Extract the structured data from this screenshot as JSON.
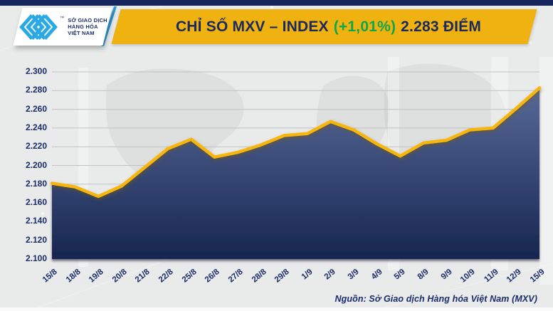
{
  "top_bar": {
    "color": "#16265c"
  },
  "header": {
    "logo": {
      "line1": "SỞ GIAO DỊCH",
      "line2": "HÀNG HÓA",
      "line3": "VIỆT NAM",
      "tm": "™",
      "mark_color": "#2aa9e2",
      "text_color": "#1c2f6b"
    },
    "banner": {
      "bg": "#efb211",
      "accent_slash_color": "#2f9fd8",
      "title_prefix": "CHỈ SỐ MXV – INDEX",
      "title_change": "(+1,01%)",
      "title_suffix": "2.283 ĐIỂM",
      "title_color": "#1b2a5e",
      "change_color": "#0fa64c"
    }
  },
  "chart_data": {
    "type": "area",
    "title": "CHỈ SỐ MXV – INDEX (+1,01%) 2.283 ĐIỂM",
    "x": [
      "15/8",
      "18/8",
      "19/8",
      "20/8",
      "21/8",
      "22/8",
      "25/8",
      "26/8",
      "27/8",
      "28/8",
      "29/8",
      "1/9",
      "2/9",
      "3/9",
      "4/9",
      "5/9",
      "8/9",
      "9/9",
      "10/9",
      "11/9",
      "12/9",
      "15/9"
    ],
    "values": [
      2.181,
      2.177,
      2.167,
      2.178,
      2.198,
      2.218,
      2.228,
      2.209,
      2.214,
      2.222,
      2.232,
      2.234,
      2.247,
      2.238,
      2.223,
      2.21,
      2.224,
      2.227,
      2.238,
      2.24,
      2.261,
      2.283
    ],
    "ylim": [
      2.1,
      2.3
    ],
    "ytick_labels": [
      "2.300",
      "2.280",
      "2.260",
      "2.240",
      "2.220",
      "2.200",
      "2.180",
      "2.160",
      "2.140",
      "2.120",
      "2.100"
    ],
    "xlabel": "",
    "ylabel": "",
    "grid": "horizontal",
    "legend": "none",
    "line_color": "#f6b60b",
    "line_shadow_color": "#7a5a00",
    "area_top_color": "#5e6f9e",
    "area_bottom_color": "#16264f",
    "grid_color": "#bfc2c8",
    "axis_label_color": "#1b2d6b"
  },
  "source": {
    "text": "Nguồn: Sở Giao dịch Hàng hóa Việt Nam (MXV)"
  }
}
